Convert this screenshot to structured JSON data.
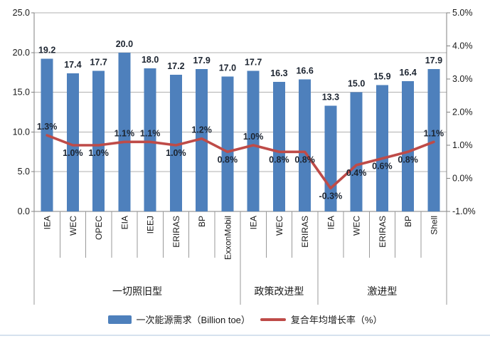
{
  "chart_data": {
    "type": "combo-bar-line",
    "title": "",
    "categories": [
      "IEA",
      "WEC",
      "OPEC",
      "EIA",
      "IEEJ",
      "ERIRAS",
      "BP",
      "ExxonMobil",
      "IEA",
      "WEC",
      "ERIRAS",
      "IEA",
      "WEC",
      "ERIRAS",
      "BP",
      "Shell"
    ],
    "category_groups": [
      {
        "label": "一切照旧型",
        "span": 8
      },
      {
        "label": "政策改进型",
        "span": 3
      },
      {
        "label": "激进型",
        "span": 5
      }
    ],
    "series": [
      {
        "name": "一次能源需求（Billion toe）",
        "type": "bar",
        "axis": "primary",
        "color": "#4E80BC",
        "values": [
          19.2,
          17.4,
          17.7,
          20.0,
          18.0,
          17.2,
          17.9,
          17.0,
          17.7,
          16.3,
          16.6,
          13.3,
          15.0,
          15.9,
          16.4,
          17.9
        ],
        "labels": [
          "19.2",
          "17.4",
          "17.7",
          "20.0",
          "18.0",
          "17.2",
          "17.9",
          "17.0",
          "17.7",
          "16.3",
          "16.6",
          "13.3",
          "15.0",
          "15.9",
          "16.4",
          "17.9"
        ]
      },
      {
        "name": "复合年均增长率（%）",
        "type": "line",
        "axis": "secondary",
        "color": "#BE4B48",
        "values": [
          1.3,
          1.0,
          1.0,
          1.1,
          1.1,
          1.0,
          1.2,
          0.8,
          1.0,
          0.8,
          0.8,
          -0.3,
          0.4,
          0.6,
          0.8,
          1.1
        ],
        "labels": [
          "1.3%",
          "1.0%",
          "1.0%",
          "1.1%",
          "1.1%",
          "1.0%",
          "1.2%",
          "0.8%",
          "1.0%",
          "0.8%",
          "0.8%",
          "-0.3%",
          "0.4%",
          "0.6%",
          "0.8%",
          "1.1%"
        ],
        "label_positions": [
          "above",
          "below",
          "below",
          "above",
          "above",
          "below",
          "above",
          "below",
          "above",
          "below",
          "below",
          "below",
          "below",
          "below",
          "below",
          "above"
        ]
      }
    ],
    "primary_axis": {
      "min": 0,
      "max": 25,
      "step": 5,
      "tick_labels": [
        "0.0",
        "5.0",
        "10.0",
        "15.0",
        "20.0",
        "25.0"
      ]
    },
    "secondary_axis": {
      "min": -1,
      "max": 5,
      "step": 1,
      "tick_labels": [
        "-1.0%",
        "0.0%",
        "1.0%",
        "2.0%",
        "3.0%",
        "4.0%",
        "5.0%"
      ]
    },
    "grid": true,
    "legend_position": "bottom",
    "legend": [
      {
        "swatch": "bar",
        "label": "一次能源需求（Billion toe）"
      },
      {
        "swatch": "line",
        "label": "复合年均增长率（%）"
      }
    ]
  },
  "colors": {
    "bar": "#4E80BC",
    "line": "#BE4B48",
    "gridline": "#B0B0B0",
    "axis": "#808080",
    "separator": "#999999",
    "label_text": "#1C2430",
    "page_divider": "#D6E2EE"
  }
}
